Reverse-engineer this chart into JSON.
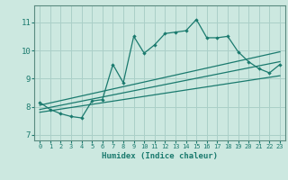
{
  "xlabel": "Humidex (Indice chaleur)",
  "bg_color": "#cce8e0",
  "grid_color": "#aacfc8",
  "line_color": "#1a7a6e",
  "spine_color": "#5a8a80",
  "xlim": [
    -0.5,
    23.5
  ],
  "ylim": [
    6.8,
    11.6
  ],
  "yticks": [
    7,
    8,
    9,
    10,
    11
  ],
  "xticks": [
    0,
    1,
    2,
    3,
    4,
    5,
    6,
    7,
    8,
    9,
    10,
    11,
    12,
    13,
    14,
    15,
    16,
    17,
    18,
    19,
    20,
    21,
    22,
    23
  ],
  "main_line_x": [
    0,
    1,
    2,
    3,
    4,
    5,
    6,
    7,
    8,
    9,
    10,
    11,
    12,
    13,
    14,
    15,
    16,
    17,
    18,
    19,
    20,
    21,
    22,
    23
  ],
  "main_line_y": [
    8.15,
    7.9,
    7.75,
    7.65,
    7.6,
    8.2,
    8.25,
    9.5,
    8.85,
    10.5,
    9.9,
    10.2,
    10.6,
    10.65,
    10.7,
    11.1,
    10.45,
    10.45,
    10.5,
    9.95,
    9.6,
    9.35,
    9.2,
    9.5
  ],
  "trend_line1_x": [
    0,
    23
  ],
  "trend_line1_y": [
    8.05,
    9.95
  ],
  "trend_line2_x": [
    0,
    23
  ],
  "trend_line2_y": [
    7.9,
    9.6
  ],
  "trend_line3_x": [
    0,
    23
  ],
  "trend_line3_y": [
    7.8,
    9.1
  ]
}
